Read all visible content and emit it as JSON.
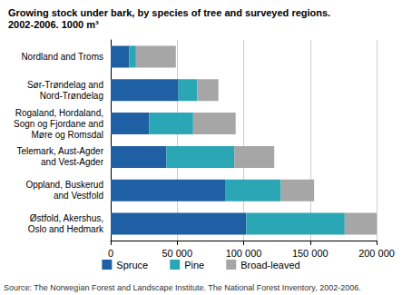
{
  "chart_data": {
    "type": "bar",
    "title": "Growing stock under bark, by species of tree and surveyed regions.\n2002-2006. 1000 m³",
    "annotation": "Source: The Norwegian Forest and Landscape Institute. The National Forest Inventory, 2002-2006.",
    "orientation": "horizontal",
    "stacked": true,
    "grid": true,
    "legend": "bottom",
    "categories": [
      "Nordland and Troms",
      "Sør-Trøndelag and\nNord-Trøndelag",
      "Rogaland, Hordaland,\nSogn og Fjordane and\nMøre og Romsdal",
      "Telemark, Aust-Agder\nand Vest-Agder",
      "Oppland, Buskerud\nand Vestfold",
      "Østfold, Akershus,\nOslo and Hedmark"
    ],
    "series": [
      {
        "name": "Spruce",
        "color": "#1f5fa3",
        "values": [
          14000,
          51000,
          29000,
          42000,
          86000,
          102000
        ]
      },
      {
        "name": "Pine",
        "color": "#2ba6b5",
        "values": [
          5000,
          14000,
          33000,
          51000,
          42000,
          74000
        ]
      },
      {
        "name": "Broad-leaved",
        "color": "#a6a6a6",
        "values": [
          30000,
          16000,
          32000,
          30000,
          25000,
          24000
        ]
      }
    ],
    "xlim": [
      0,
      200000
    ],
    "xticks": [
      0,
      {
        "value": 50000,
        "label": "50 000"
      },
      {
        "value": 100000,
        "label": "100 000"
      },
      {
        "value": 150000,
        "label": "150 000"
      },
      {
        "value": 200000,
        "label": "200 000"
      }
    ]
  }
}
